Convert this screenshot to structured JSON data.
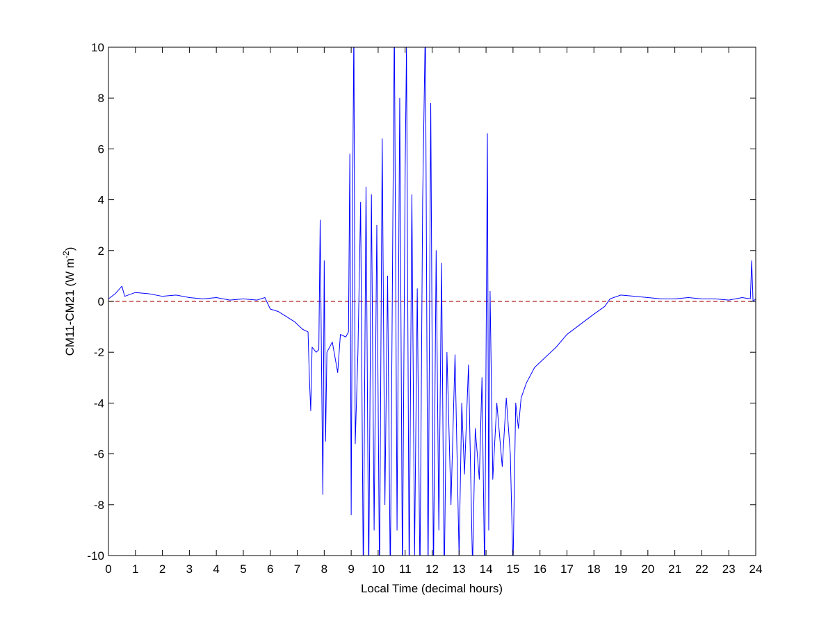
{
  "chart_data": {
    "type": "line",
    "x_label": "Local Time (decimal hours)",
    "y_label": [
      "CM11-CM21 (W m",
      "-2",
      ")"
    ],
    "x": [
      0,
      0.25,
      0.5,
      0.6,
      1,
      1.5,
      2,
      2.5,
      3,
      3.5,
      4,
      4.5,
      5,
      5.5,
      5.8,
      6,
      6.3,
      6.6,
      6.9,
      7.2,
      7.4,
      7.45,
      7.5,
      7.55,
      7.7,
      7.8,
      7.85,
      7.9,
      7.95,
      8.0,
      8.05,
      8.1,
      8.3,
      8.5,
      8.6,
      8.8,
      8.9,
      8.95,
      9.0,
      9.05,
      9.1,
      9.15,
      9.25,
      9.35,
      9.45,
      9.55,
      9.65,
      9.75,
      9.85,
      9.95,
      10.05,
      10.15,
      10.25,
      10.35,
      10.45,
      10.55,
      10.6,
      10.7,
      10.8,
      10.9,
      11.0,
      11.05,
      11.15,
      11.25,
      11.35,
      11.45,
      11.55,
      11.65,
      11.75,
      11.85,
      11.95,
      12.05,
      12.15,
      12.25,
      12.35,
      12.45,
      12.55,
      12.7,
      12.85,
      13.0,
      13.1,
      13.2,
      13.35,
      13.5,
      13.6,
      13.75,
      13.85,
      13.95,
      14.05,
      14.1,
      14.15,
      14.25,
      14.4,
      14.6,
      14.75,
      14.9,
      15.0,
      15.1,
      15.2,
      15.3,
      15.5,
      15.8,
      16.2,
      16.6,
      17.0,
      17.5,
      18.0,
      18.4,
      18.6,
      19,
      19.5,
      20,
      20.5,
      21,
      21.5,
      22,
      22.5,
      23,
      23.5,
      23.8,
      23.85,
      23.9,
      24
    ],
    "series": [
      {
        "name": "CM11-CM21",
        "color": "#0000ff",
        "values": [
          0.1,
          0.3,
          0.6,
          0.2,
          0.35,
          0.3,
          0.2,
          0.25,
          0.15,
          0.1,
          0.15,
          0.05,
          0.1,
          0.05,
          0.15,
          -0.3,
          -0.4,
          -0.6,
          -0.8,
          -1.1,
          -1.2,
          -3,
          -4.3,
          -1.8,
          -2.0,
          -1.9,
          3.2,
          -2.5,
          -7.6,
          1.6,
          -5.5,
          -2,
          -1.6,
          -2.8,
          -1.3,
          -1.4,
          -1.2,
          5.8,
          -8.4,
          3.3,
          11,
          -5.6,
          -2,
          3.9,
          -11,
          4.5,
          -11,
          4.2,
          -9,
          3.0,
          -11,
          6.4,
          -8,
          1,
          -11,
          4,
          11,
          -9,
          8,
          -11,
          5,
          10,
          -11,
          4.2,
          -10,
          0.5,
          -11,
          4,
          11,
          -11,
          7.8,
          -11,
          2,
          -9,
          1.5,
          -11,
          -2,
          -8,
          -2.1,
          -10,
          -4,
          -6.8,
          -2.5,
          -10.5,
          -5,
          -7,
          -3,
          -11,
          6.6,
          -9,
          0.4,
          -7,
          -4,
          -6.5,
          -3.8,
          -6,
          -10.5,
          -4,
          -5,
          -3.8,
          -3.2,
          -2.6,
          -2.2,
          -1.8,
          -1.3,
          -0.9,
          -0.5,
          -0.2,
          0.1,
          0.25,
          0.2,
          0.15,
          0.1,
          0.1,
          0.15,
          0.1,
          0.1,
          0.05,
          0.15,
          0.1,
          1.6,
          0.0,
          0.1
        ]
      }
    ],
    "reference_line": {
      "y": 0,
      "color": "#b22222",
      "dash": true
    },
    "xlim": [
      0,
      24
    ],
    "xticks": [
      0,
      1,
      2,
      3,
      4,
      5,
      6,
      7,
      8,
      9,
      10,
      11,
      12,
      13,
      14,
      15,
      16,
      17,
      18,
      19,
      20,
      21,
      22,
      23,
      24
    ],
    "ylim": [
      -10,
      10
    ],
    "yticks": [
      -10,
      -8,
      -6,
      -4,
      -2,
      0,
      2,
      4,
      6,
      8,
      10
    ],
    "grid": false
  }
}
